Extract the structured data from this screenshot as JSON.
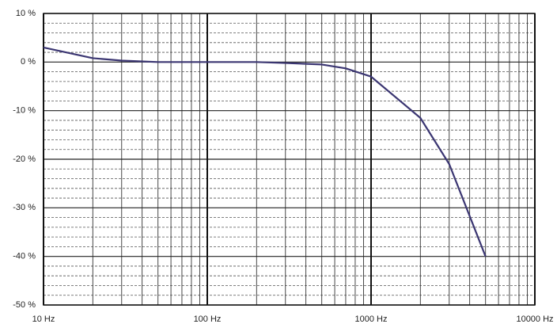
{
  "chart_data": {
    "type": "line",
    "log_x": true,
    "grid": true,
    "minor_grid": true,
    "x": [
      10,
      20,
      30,
      50,
      100,
      200,
      300,
      500,
      700,
      1000,
      2000,
      3000,
      5000
    ],
    "series": [
      {
        "color": "#3b3672",
        "values": [
          3,
          0.8,
          0.3,
          0,
          0,
          0,
          -0.2,
          -0.5,
          -1.3,
          -3,
          -11.5,
          -21,
          -40
        ]
      }
    ],
    "xlim": [
      10,
      10000
    ],
    "xticks": [
      {
        "value": 10,
        "label": "10 Hz"
      },
      {
        "value": 100,
        "label": "100 Hz"
      },
      {
        "value": 1000,
        "label": "1000 Hz"
      },
      {
        "value": 10000,
        "label": "10000 Hz"
      }
    ],
    "ylim": [
      -50,
      10
    ],
    "yticks": [
      {
        "value": -50,
        "label": "-50 %"
      },
      {
        "value": -40,
        "label": "-40 %"
      },
      {
        "value": -30,
        "label": "-30 %"
      },
      {
        "value": -20,
        "label": "-20 %"
      },
      {
        "value": -10,
        "label": "-10 %"
      },
      {
        "value": 0,
        "label": "0 %"
      },
      {
        "value": 10,
        "label": "10 %"
      }
    ]
  }
}
